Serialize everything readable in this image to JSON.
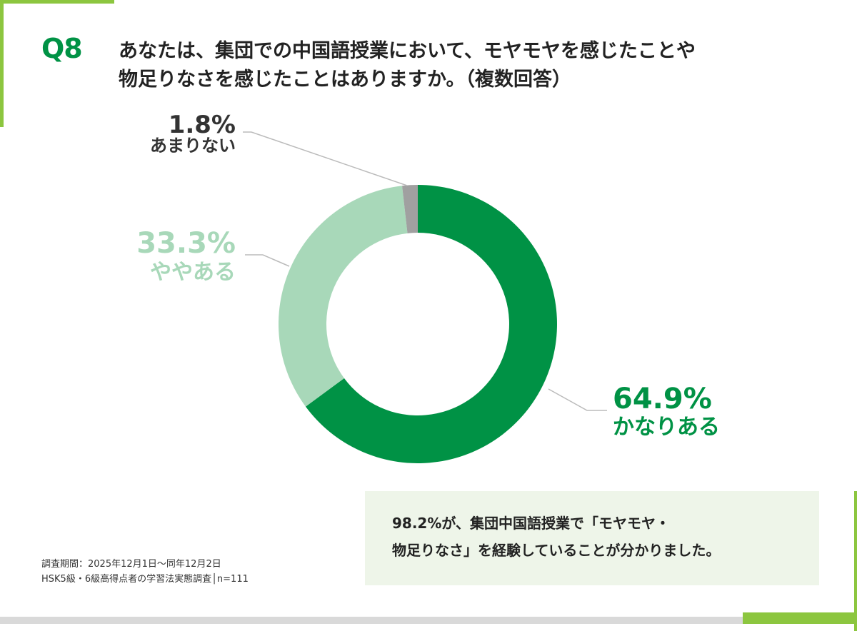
{
  "question": {
    "number": "Q8",
    "line1": "あなたは、集団での中国語授業において、モヤモヤを感じたことや",
    "line2": "物足りなさを感じたことはありますか。（複数回答）"
  },
  "chart_data": {
    "type": "pie",
    "donut": true,
    "slices": [
      {
        "label": "かなりある",
        "value": 64.9,
        "display": "64.9%",
        "color": "#009245"
      },
      {
        "label": "ややある",
        "value": 33.3,
        "display": "33.3%",
        "color": "#a8d8b9"
      },
      {
        "label": "あまりない",
        "value": 1.8,
        "display": "1.8%",
        "color": "#a0a0a0"
      }
    ],
    "start": "top",
    "direction": "clockwise",
    "leader_line_color": "#bbbbbb"
  },
  "summary": {
    "line1": "98.2%が、集団中国語授業で「モヤモヤ・",
    "line2": "物足りなさ」を経験していることが分かりました。"
  },
  "footnote": {
    "period": "調査期間：2025年12月1日〜同年12月2日",
    "survey": "HSK5級・6級高得点者の学習法実態調査│n=111"
  },
  "colors": {
    "accent_green": "#009245",
    "frame_green": "#8cc63f",
    "summary_bg": "#eef5e9"
  }
}
